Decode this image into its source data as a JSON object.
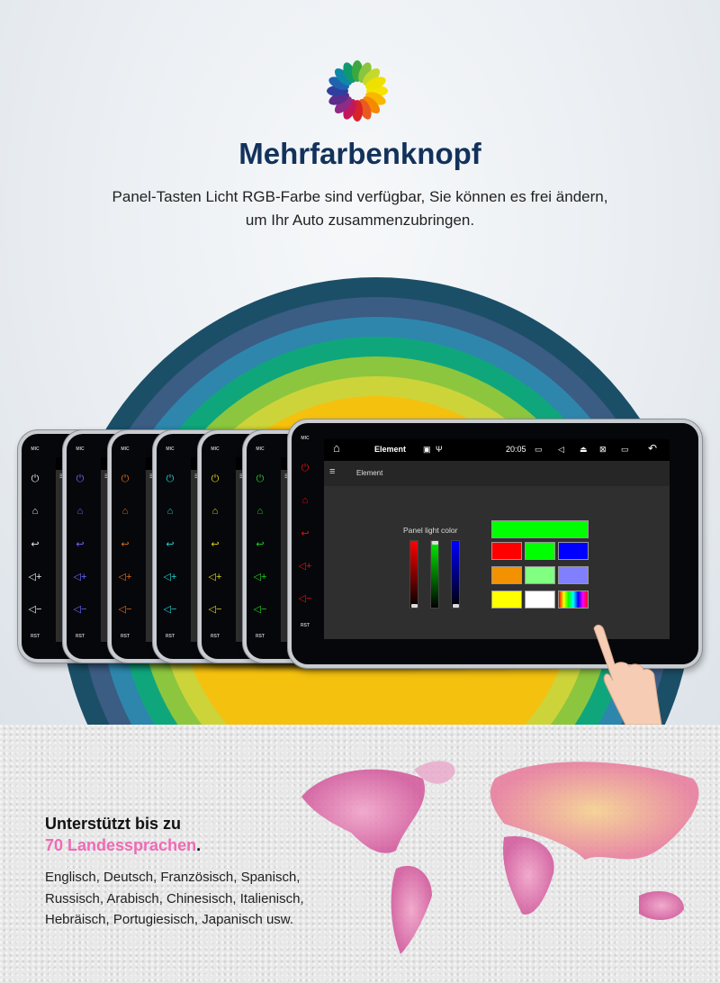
{
  "header": {
    "title": "Mehrfarbenknopf",
    "subtitle_line1": "Panel-Tasten Licht RGB-Farbe sind verfügbar, Sie können es frei ändern,",
    "subtitle_line2": "um Ihr Auto zusammenzubringen."
  },
  "rainbow_colors": [
    "#1b4f68",
    "#3b5c83",
    "#2e86ad",
    "#10a67c",
    "#8cc63f",
    "#cdd43a",
    "#f4c10f"
  ],
  "devices": {
    "button_colors": [
      "#e8e8e8",
      "#6a6aff",
      "#e06a10",
      "#20d0d0",
      "#e0d010",
      "#20d020",
      "#e01010"
    ],
    "mic_label": "MIC",
    "rst_label": "RST",
    "status": {
      "title": "Element",
      "time": "20:05"
    },
    "app_title": "Element",
    "panel_light_label": "Panel light color",
    "rgb_sliders": {
      "red": 0,
      "green": 100,
      "blue": 0
    },
    "swatches": [
      "#ff0000",
      "#00ff00",
      "#0000ff",
      "#f39200",
      "#80ff80",
      "#8080ff",
      "#ffff00",
      "#ffffff",
      "rainbow"
    ],
    "selected_color": "#00ff00"
  },
  "languages": {
    "line1": "Unterstützt bis zu",
    "highlight": "70 Landessprachen",
    "period": ".",
    "list": "Englisch, Deutsch, Französisch, Spanisch, Russisch, Arabisch, Chinesisch, Italienisch, Hebräisch, Portugiesisch, Japanisch usw."
  }
}
